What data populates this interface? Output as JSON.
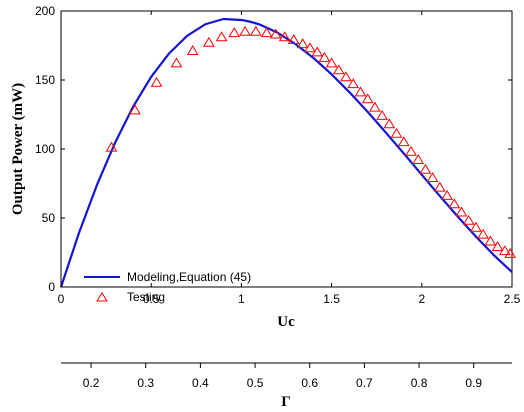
{
  "chart_data": {
    "type": "line",
    "xlabel": "Uc",
    "ylabel": "Output Power (mW)",
    "x2label": "Γ",
    "xlim": [
      0,
      2.5
    ],
    "ylim": [
      0,
      200
    ],
    "x2lim": [
      0.145,
      0.97
    ],
    "xticks": [
      "0",
      "0.5",
      "1",
      "1.5",
      "2",
      "2.5"
    ],
    "yticks": [
      "0",
      "50",
      "100",
      "150",
      "200"
    ],
    "x2ticks": [
      "0.2",
      "0.3",
      "0.4",
      "0.5",
      "0.6",
      "0.7",
      "0.8",
      "0.9"
    ],
    "grid": false,
    "legend_position": "bottom-left",
    "series": [
      {
        "name": "Modeling,Equation (45)",
        "style": "line",
        "color": "#1414d2",
        "x": [
          0,
          0.1,
          0.2,
          0.3,
          0.4,
          0.5,
          0.6,
          0.7,
          0.8,
          0.9,
          1.0,
          1.05,
          1.1,
          1.2,
          1.3,
          1.4,
          1.5,
          1.6,
          1.7,
          1.8,
          1.9,
          2.0,
          2.1,
          2.2,
          2.3,
          2.4,
          2.5
        ],
        "y": [
          0,
          39.3,
          74.2,
          104.6,
          130.7,
          152.3,
          169.4,
          182.1,
          190.4,
          194.2,
          193.5,
          192.2,
          190.3,
          184.3,
          176.0,
          165.9,
          154.1,
          141.0,
          126.9,
          112.0,
          96.8,
          81.3,
          65.9,
          50.9,
          36.5,
          23.0,
          10.8
        ]
      },
      {
        "name": "Testing",
        "style": "markers",
        "marker": "triangle",
        "color": "#ff0000",
        "x": [
          0.28,
          0.41,
          0.53,
          0.64,
          0.73,
          0.82,
          0.89,
          0.96,
          1.02,
          1.08,
          1.14,
          1.19,
          1.24,
          1.29,
          1.34,
          1.38,
          1.42,
          1.46,
          1.5,
          1.54,
          1.58,
          1.62,
          1.66,
          1.7,
          1.74,
          1.78,
          1.82,
          1.86,
          1.9,
          1.94,
          1.98,
          2.02,
          2.06,
          2.1,
          2.14,
          2.18,
          2.22,
          2.26,
          2.3,
          2.34,
          2.38,
          2.42,
          2.46,
          2.49
        ],
        "y": [
          101,
          128,
          148,
          162,
          171,
          177,
          181,
          184,
          185,
          185,
          184,
          183,
          181,
          179,
          176,
          173,
          170,
          166,
          162,
          157,
          152,
          147,
          141,
          136,
          130,
          124,
          118,
          111,
          105,
          98,
          92,
          85,
          79,
          72,
          66,
          60,
          54,
          48,
          43,
          38,
          33,
          29,
          26,
          24
        ]
      }
    ]
  }
}
